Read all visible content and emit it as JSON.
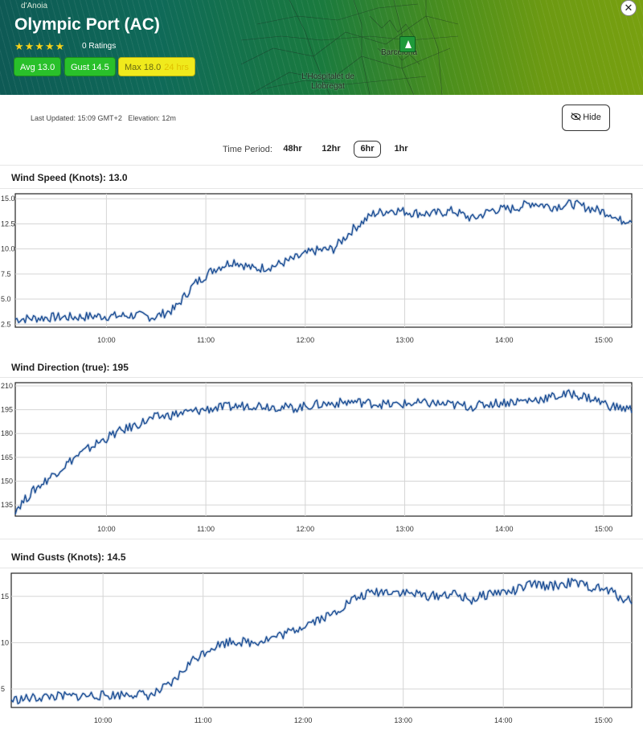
{
  "header": {
    "station_name": "Olympic Port (AC)",
    "stars": "★★★★★",
    "ratings": "0 Ratings",
    "avg_label": "Avg 13.0",
    "gust_label": "Gust 14.5",
    "max_label": "Max 18.0",
    "max_period": "24 hrs",
    "close_symbol": "✕",
    "map_labels": {
      "anoia": "d'Anoia",
      "hospitalet": "L'Hospitalet de Llobregat",
      "barcelona": "Barcelona"
    }
  },
  "info": {
    "updated": "Last Updated: 15:09 GMT+2   Elevation: 12m",
    "hide_label": "Hide",
    "time_period_label": "Time Period:",
    "periods": [
      "48hr",
      "12hr",
      "6hr",
      "1hr"
    ],
    "active_period": "6hr"
  },
  "colors": {
    "series": "#1d4f95",
    "avg_badge": "#29c02a",
    "gust_badge": "#29c02a",
    "max_badge": "#f0ea1c"
  },
  "chart_data": [
    {
      "type": "line",
      "title": "Wind Speed (Knots): 13.0",
      "x_start_minutes": 0,
      "x_end_minutes": 372,
      "xticks": [
        "10:00",
        "11:00",
        "12:00",
        "13:00",
        "14:00",
        "15:00"
      ],
      "yticks": [
        "2.5",
        "5.0",
        "7.5",
        "10.0",
        "12.5",
        "15.0"
      ],
      "ylim": [
        2.2,
        15.5
      ],
      "grid": true,
      "x_minutes": [
        0,
        12,
        24,
        36,
        48,
        60,
        72,
        84,
        96,
        108,
        120,
        132,
        144,
        156,
        168,
        180,
        192,
        204,
        216,
        228,
        240,
        252,
        264,
        276,
        288,
        300,
        312,
        324,
        336,
        348,
        360,
        364,
        372
      ],
      "values": [
        3.0,
        3.1,
        3.2,
        3.2,
        3.3,
        3.3,
        3.4,
        3.2,
        4.0,
        6.5,
        8.0,
        8.8,
        8.0,
        8.3,
        9.0,
        9.8,
        10.0,
        12.0,
        13.5,
        13.9,
        13.6,
        13.5,
        13.8,
        13.0,
        13.9,
        14.0,
        14.6,
        14.2,
        14.5,
        14.0,
        13.5,
        12.8,
        13.0
      ]
    },
    {
      "type": "line",
      "title": "Wind Direction (true): 195",
      "x_start_minutes": 0,
      "x_end_minutes": 372,
      "xticks": [
        "10:00",
        "11:00",
        "12:00",
        "13:00",
        "14:00",
        "15:00"
      ],
      "yticks": [
        "135",
        "150",
        "165",
        "180",
        "195",
        "210"
      ],
      "ylim": [
        128,
        212
      ],
      "grid": true,
      "x_minutes": [
        0,
        12,
        24,
        36,
        48,
        60,
        72,
        84,
        96,
        108,
        120,
        132,
        144,
        156,
        168,
        180,
        192,
        204,
        216,
        228,
        240,
        252,
        264,
        276,
        288,
        300,
        312,
        324,
        336,
        348,
        360,
        372
      ],
      "values": [
        132,
        145,
        155,
        165,
        173,
        180,
        185,
        190,
        192,
        194,
        196,
        197,
        198,
        197,
        196,
        198,
        199,
        200,
        199,
        198,
        199,
        199,
        198,
        197,
        199,
        200,
        201,
        203,
        205,
        202,
        197,
        195
      ]
    },
    {
      "type": "line",
      "title": "Wind Gusts (Knots): 14.5",
      "x_start_minutes": 0,
      "x_end_minutes": 372,
      "xticks": [
        "10:00",
        "11:00",
        "12:00",
        "13:00",
        "14:00",
        "15:00"
      ],
      "yticks": [
        "5",
        "10",
        "15"
      ],
      "ylim": [
        3,
        17.5
      ],
      "grid": true,
      "x_minutes": [
        0,
        12,
        24,
        36,
        48,
        60,
        72,
        84,
        96,
        108,
        120,
        132,
        144,
        156,
        168,
        180,
        192,
        204,
        216,
        228,
        240,
        252,
        264,
        276,
        288,
        300,
        312,
        324,
        336,
        348,
        360,
        364,
        372
      ],
      "values": [
        3.8,
        4.0,
        4.2,
        4.2,
        4.3,
        4.3,
        4.5,
        4.3,
        5.5,
        8.0,
        9.5,
        10.2,
        10.0,
        10.5,
        11.2,
        12.3,
        13.0,
        14.6,
        15.4,
        15.6,
        15.3,
        15.0,
        15.3,
        14.6,
        15.4,
        15.5,
        16.3,
        16.1,
        16.5,
        16.0,
        15.5,
        15.0,
        14.5
      ]
    }
  ]
}
